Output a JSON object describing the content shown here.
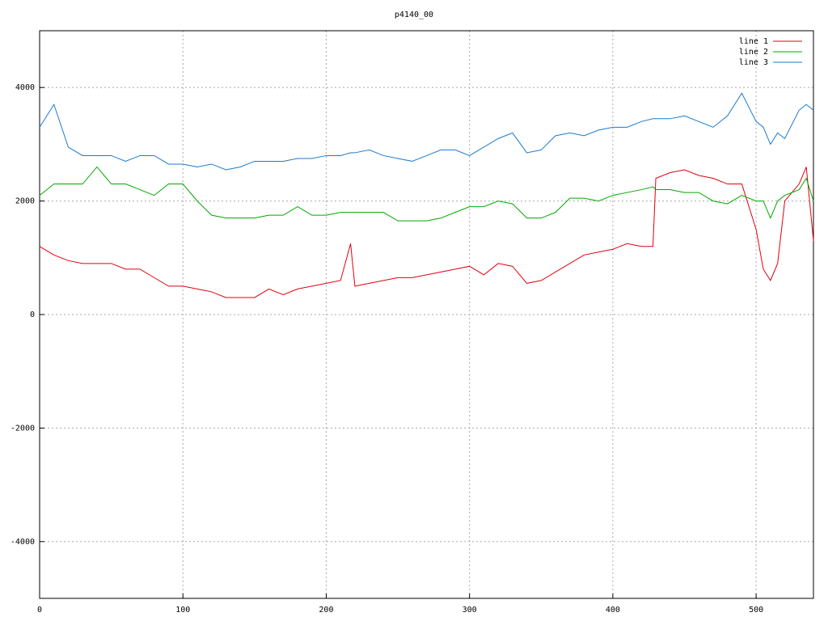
{
  "chart_data": {
    "type": "line",
    "title": "p4140_00",
    "x": [
      0,
      10,
      20,
      30,
      40,
      50,
      60,
      70,
      80,
      90,
      100,
      110,
      120,
      130,
      140,
      150,
      160,
      170,
      180,
      190,
      200,
      210,
      217,
      220,
      230,
      240,
      250,
      260,
      270,
      280,
      290,
      300,
      310,
      320,
      330,
      340,
      350,
      360,
      370,
      380,
      390,
      400,
      410,
      420,
      428,
      430,
      440,
      450,
      460,
      470,
      480,
      490,
      500,
      505,
      510,
      515,
      520,
      530,
      535,
      540
    ],
    "series": [
      {
        "name": "line 1",
        "color": "#e0000e",
        "values": [
          1200,
          1050,
          950,
          900,
          900,
          900,
          800,
          800,
          650,
          500,
          500,
          450,
          400,
          300,
          300,
          300,
          450,
          350,
          450,
          500,
          550,
          600,
          1250,
          500,
          550,
          600,
          650,
          650,
          700,
          750,
          800,
          850,
          700,
          900,
          850,
          550,
          600,
          750,
          900,
          1050,
          1100,
          1150,
          1250,
          1200,
          1200,
          2400,
          2500,
          2550,
          2450,
          2400,
          2300,
          2300,
          1500,
          800,
          600,
          900,
          2000,
          2300,
          2600,
          1300
        ]
      },
      {
        "name": "line 2",
        "color": "#00a800",
        "values": [
          2100,
          2300,
          2300,
          2300,
          2600,
          2300,
          2300,
          2200,
          2100,
          2300,
          2300,
          2000,
          1750,
          1700,
          1700,
          1700,
          1750,
          1750,
          1900,
          1750,
          1750,
          1800,
          1800,
          1800,
          1800,
          1800,
          1650,
          1650,
          1650,
          1700,
          1800,
          1900,
          1900,
          2000,
          1950,
          1700,
          1700,
          1800,
          2050,
          2050,
          2000,
          2100,
          2150,
          2200,
          2250,
          2200,
          2200,
          2150,
          2150,
          2000,
          1950,
          2100,
          2000,
          2000,
          1700,
          2000,
          2100,
          2200,
          2400,
          2000
        ]
      },
      {
        "name": "line 3",
        "color": "#1a7ad0",
        "values": [
          3300,
          3700,
          2950,
          2800,
          2800,
          2800,
          2700,
          2800,
          2800,
          2650,
          2650,
          2600,
          2650,
          2550,
          2600,
          2700,
          2700,
          2700,
          2750,
          2750,
          2800,
          2800,
          2850,
          2850,
          2900,
          2800,
          2750,
          2700,
          2800,
          2900,
          2900,
          2800,
          2950,
          3100,
          3200,
          2850,
          2900,
          3150,
          3200,
          3150,
          3250,
          3300,
          3300,
          3400,
          3450,
          3450,
          3450,
          3500,
          3400,
          3300,
          3500,
          3900,
          3400,
          3300,
          3000,
          3200,
          3100,
          3600,
          3700,
          3600
        ]
      }
    ],
    "xlim": [
      0,
      540
    ],
    "ylim": [
      -5000,
      5000
    ],
    "xticks": [
      0,
      100,
      200,
      300,
      400,
      500
    ],
    "yticks": [
      -4000,
      -2000,
      0,
      2000,
      4000
    ],
    "grid": true,
    "legend": "top-right"
  }
}
